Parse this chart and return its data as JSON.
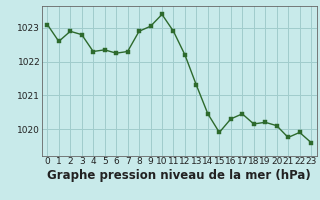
{
  "x": [
    0,
    1,
    2,
    3,
    4,
    5,
    6,
    7,
    8,
    9,
    10,
    11,
    12,
    13,
    14,
    15,
    16,
    17,
    18,
    19,
    20,
    21,
    22,
    23
  ],
  "y": [
    1023.1,
    1022.6,
    1022.9,
    1022.8,
    1022.3,
    1022.35,
    1022.25,
    1022.3,
    1022.9,
    1023.05,
    1023.4,
    1022.9,
    1022.2,
    1021.3,
    1020.45,
    1019.9,
    1020.3,
    1020.45,
    1020.15,
    1020.2,
    1020.1,
    1019.75,
    1019.9,
    1019.6
  ],
  "line_color": "#2d6a2d",
  "marker_color": "#2d6a2d",
  "bg_color": "#c8eaea",
  "grid_color": "#a0cccc",
  "xlabel": "Graphe pression niveau de la mer (hPa)",
  "xlabel_fontsize": 8.5,
  "ylabel_ticks": [
    1020,
    1021,
    1022,
    1023
  ],
  "ylim": [
    1019.2,
    1023.65
  ],
  "xlim": [
    -0.5,
    23.5
  ],
  "xticks": [
    0,
    1,
    2,
    3,
    4,
    5,
    6,
    7,
    8,
    9,
    10,
    11,
    12,
    13,
    14,
    15,
    16,
    17,
    18,
    19,
    20,
    21,
    22,
    23
  ],
  "tick_fontsize": 6.5,
  "marker_size": 2.8,
  "line_width": 1.0
}
